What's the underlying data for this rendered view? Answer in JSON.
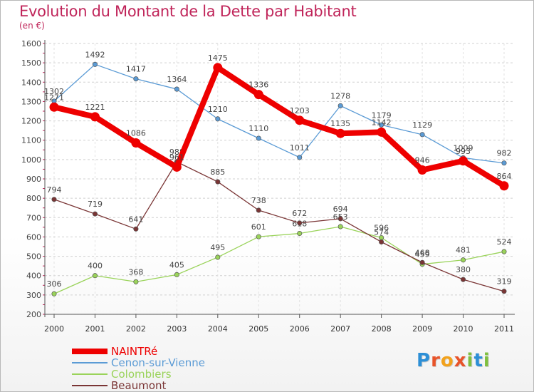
{
  "title": "Evolution du Montant de la Dette par Habitant",
  "subtitle": "(en €)",
  "logo": {
    "text": "Proxiti",
    "letters": [
      {
        "ch": "P",
        "color": "#2d8fd6"
      },
      {
        "ch": "r",
        "color": "#e8542a"
      },
      {
        "ch": "o",
        "color": "#f2a21c"
      },
      {
        "ch": "x",
        "color": "#e8542a"
      },
      {
        "ch": "i",
        "color": "#7fbf3f"
      },
      {
        "ch": "t",
        "color": "#2d8fd6"
      },
      {
        "ch": "i",
        "color": "#7fbf3f"
      }
    ]
  },
  "chart_data": {
    "type": "line",
    "title": "Evolution du Montant de la Dette par Habitant",
    "subtitle": "(en €)",
    "categories": [
      "2000",
      "2001",
      "2002",
      "2003",
      "2004",
      "2005",
      "2006",
      "2007",
      "2008",
      "2009",
      "2010",
      "2011"
    ],
    "ylim": [
      200,
      1600
    ],
    "yticks": [
      200,
      300,
      400,
      500,
      600,
      700,
      800,
      900,
      1000,
      1100,
      1200,
      1300,
      1400,
      1500,
      1600
    ],
    "grid": true,
    "legend_position": "bottom-left",
    "series": [
      {
        "name": "NAINTRé",
        "color": "#ee0000",
        "emphasis": true,
        "values": [
          1271,
          1221,
          1086,
          961,
          1475,
          1336,
          1203,
          1135,
          1142,
          946,
          993,
          864
        ],
        "labels": [
          "1271",
          "1221",
          "1086",
          "961",
          "1475",
          "1336",
          "1203",
          "1135",
          "1142",
          "946",
          "993",
          "864"
        ]
      },
      {
        "name": "Cenon-sur-Vienne",
        "color": "#5b9bd5",
        "emphasis": false,
        "values": [
          1302,
          1492,
          1417,
          1364,
          1210,
          1110,
          1011,
          1278,
          1179,
          1129,
          1009,
          982
        ],
        "labels": [
          "1302",
          "1492",
          "1417",
          "1364",
          "1210",
          "1110",
          "1011",
          "1278",
          "1179",
          "1129",
          "1009",
          "982"
        ]
      },
      {
        "name": "Colombiers",
        "color": "#9ad35a",
        "emphasis": false,
        "values": [
          306,
          400,
          368,
          405,
          495,
          601,
          618,
          653,
          596,
          459,
          481,
          524
        ],
        "labels": [
          "306",
          "400",
          "368",
          "405",
          "495",
          "601",
          "618",
          "653",
          "596",
          "459",
          "481",
          "524"
        ]
      },
      {
        "name": "Beaumont",
        "color": "#7a3535",
        "emphasis": false,
        "values": [
          794,
          719,
          641,
          988,
          885,
          738,
          672,
          694,
          574,
          468,
          380,
          319
        ],
        "labels": [
          "794",
          "719",
          "641",
          "988",
          "885",
          "738",
          "672",
          "694",
          "574",
          "468",
          "380",
          "319"
        ]
      }
    ]
  }
}
